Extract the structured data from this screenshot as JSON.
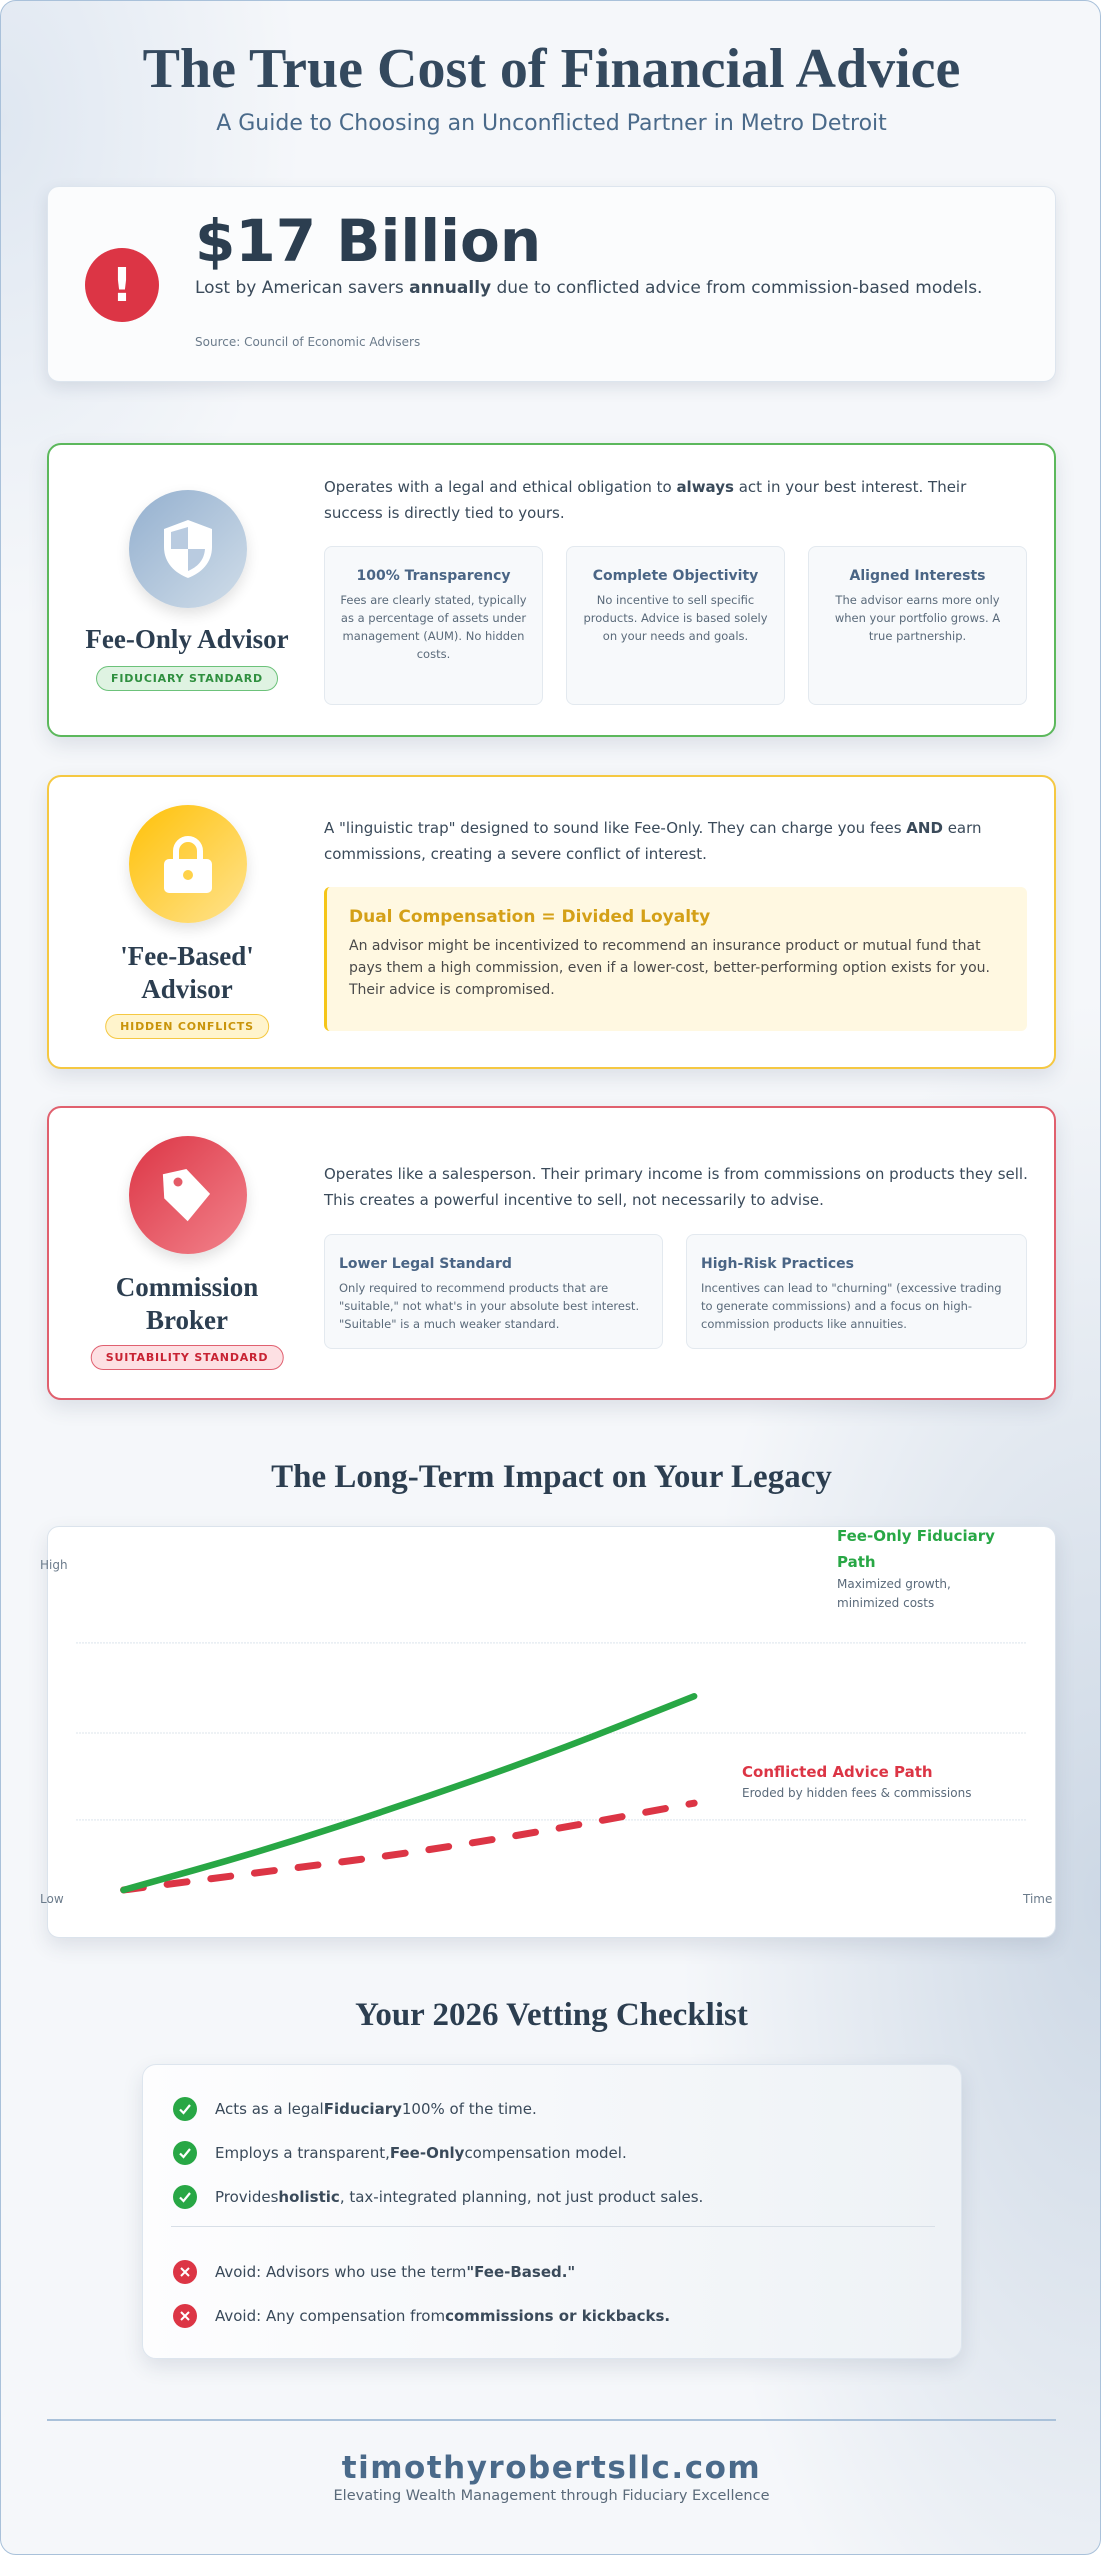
{
  "header": {
    "title": "The True Cost of Financial Advice",
    "subtitle": "A Guide to Choosing an Unconflicted Partner in Metro Detroit"
  },
  "stat": {
    "icon": "exclamation-icon",
    "value": "$17 Billion",
    "desc_pre": "Lost by American savers ",
    "desc_bold": "annually",
    "desc_post": " due to conflicted advice from commission-based models.",
    "source": "Source: Council of Economic Advisers"
  },
  "cards": [
    {
      "icon": "shield-icon",
      "title": "Fee-Only Advisor",
      "badge": "FIDUCIARY STANDARD",
      "color": "#5cb85c",
      "desc_pre": "Operates with a legal and ethical obligation to ",
      "desc_bold": "always",
      "desc_post": " act in your best interest. Their success is directly tied to yours.",
      "features": [
        {
          "title": "100% Transparency",
          "text": "Fees are clearly stated, typically as a percentage of assets under management (AUM). No hidden costs."
        },
        {
          "title": "Complete Objectivity",
          "text": "No incentive to sell specific products. Advice is based solely on your needs and goals."
        },
        {
          "title": "Aligned Interests",
          "text": "The advisor earns more only when your portfolio grows. A true partnership."
        }
      ]
    },
    {
      "icon": "lock-icon",
      "title": "'Fee-Based' Advisor",
      "badge": "HIDDEN CONFLICTS",
      "color": "#f5c518",
      "desc_pre": "A \"linguistic trap\" designed to sound like Fee-Only. They can charge you fees ",
      "desc_bold": "AND",
      "desc_post": " earn commissions, creating a severe conflict of interest.",
      "callout": {
        "title": "Dual Compensation = Divided Loyalty",
        "text": "An advisor might be incentivized to recommend an insurance product or mutual fund that pays them a high commission, even if a lower-cost, better-performing option exists for you. Their advice is compromised."
      }
    },
    {
      "icon": "tag-icon",
      "title": "Commission Broker",
      "badge": "SUITABILITY STANDARD",
      "color": "#dc3545",
      "desc": "Operates like a salesperson. Their primary income is from commissions on products they sell. This creates a powerful incentive to sell, not necessarily to advise.",
      "features": [
        {
          "title": "Lower Legal Standard",
          "text": "Only required to recommend products that are \"suitable,\" not what's in your absolute best interest. \"Suitable\" is a much weaker standard."
        },
        {
          "title": "High-Risk Practices",
          "text": "Incentives can lead to \"churning\" (excessive trading to generate commissions) and a focus on high-commission products like annuities."
        }
      ]
    }
  ],
  "chart_section": {
    "title": "The Long-Term Impact on Your Legacy"
  },
  "chart_data": {
    "type": "line",
    "title": "",
    "xlabel": "Time",
    "ylabel": "",
    "y_tick_labels": [
      "High",
      "Low"
    ],
    "xlim": [
      0,
      100
    ],
    "ylim": [
      0,
      100
    ],
    "grid": true,
    "series": [
      {
        "name": "Fee-Only Fiduciary Path",
        "annotation": "Maximized growth, minimized costs",
        "color": "#28a745",
        "style": "solid",
        "x": [
          5,
          20,
          35,
          50,
          65
        ],
        "values": [
          3,
          15,
          29,
          44,
          61
        ]
      },
      {
        "name": "Conflicted Advice Path",
        "annotation": "Eroded by hidden fees & commissions",
        "color": "#dc3545",
        "style": "dashed",
        "x": [
          5,
          20,
          35,
          50,
          65
        ],
        "values": [
          3,
          8.5,
          14,
          21,
          29
        ]
      }
    ]
  },
  "checklist": {
    "title": "Your 2026 Vetting Checklist",
    "do": [
      {
        "pre": "Acts as a legal ",
        "bold": "Fiduciary",
        "post": " 100% of the time."
      },
      {
        "pre": "Employs a transparent, ",
        "bold": "Fee-Only",
        "post": " compensation model."
      },
      {
        "pre": "Provides ",
        "bold": "holistic",
        "post": ", tax-integrated planning, not just product sales."
      }
    ],
    "avoid": [
      {
        "pre": "Avoid: Advisors who use the term ",
        "bold": "\"Fee-Based.\"",
        "post": ""
      },
      {
        "pre": "Avoid: Any compensation from ",
        "bold": "commissions or kickbacks.",
        "post": ""
      }
    ]
  },
  "footer": {
    "domain": "timothyrobertsllc.com",
    "tagline": "Elevating Wealth Management through Fiduciary Excellence"
  }
}
